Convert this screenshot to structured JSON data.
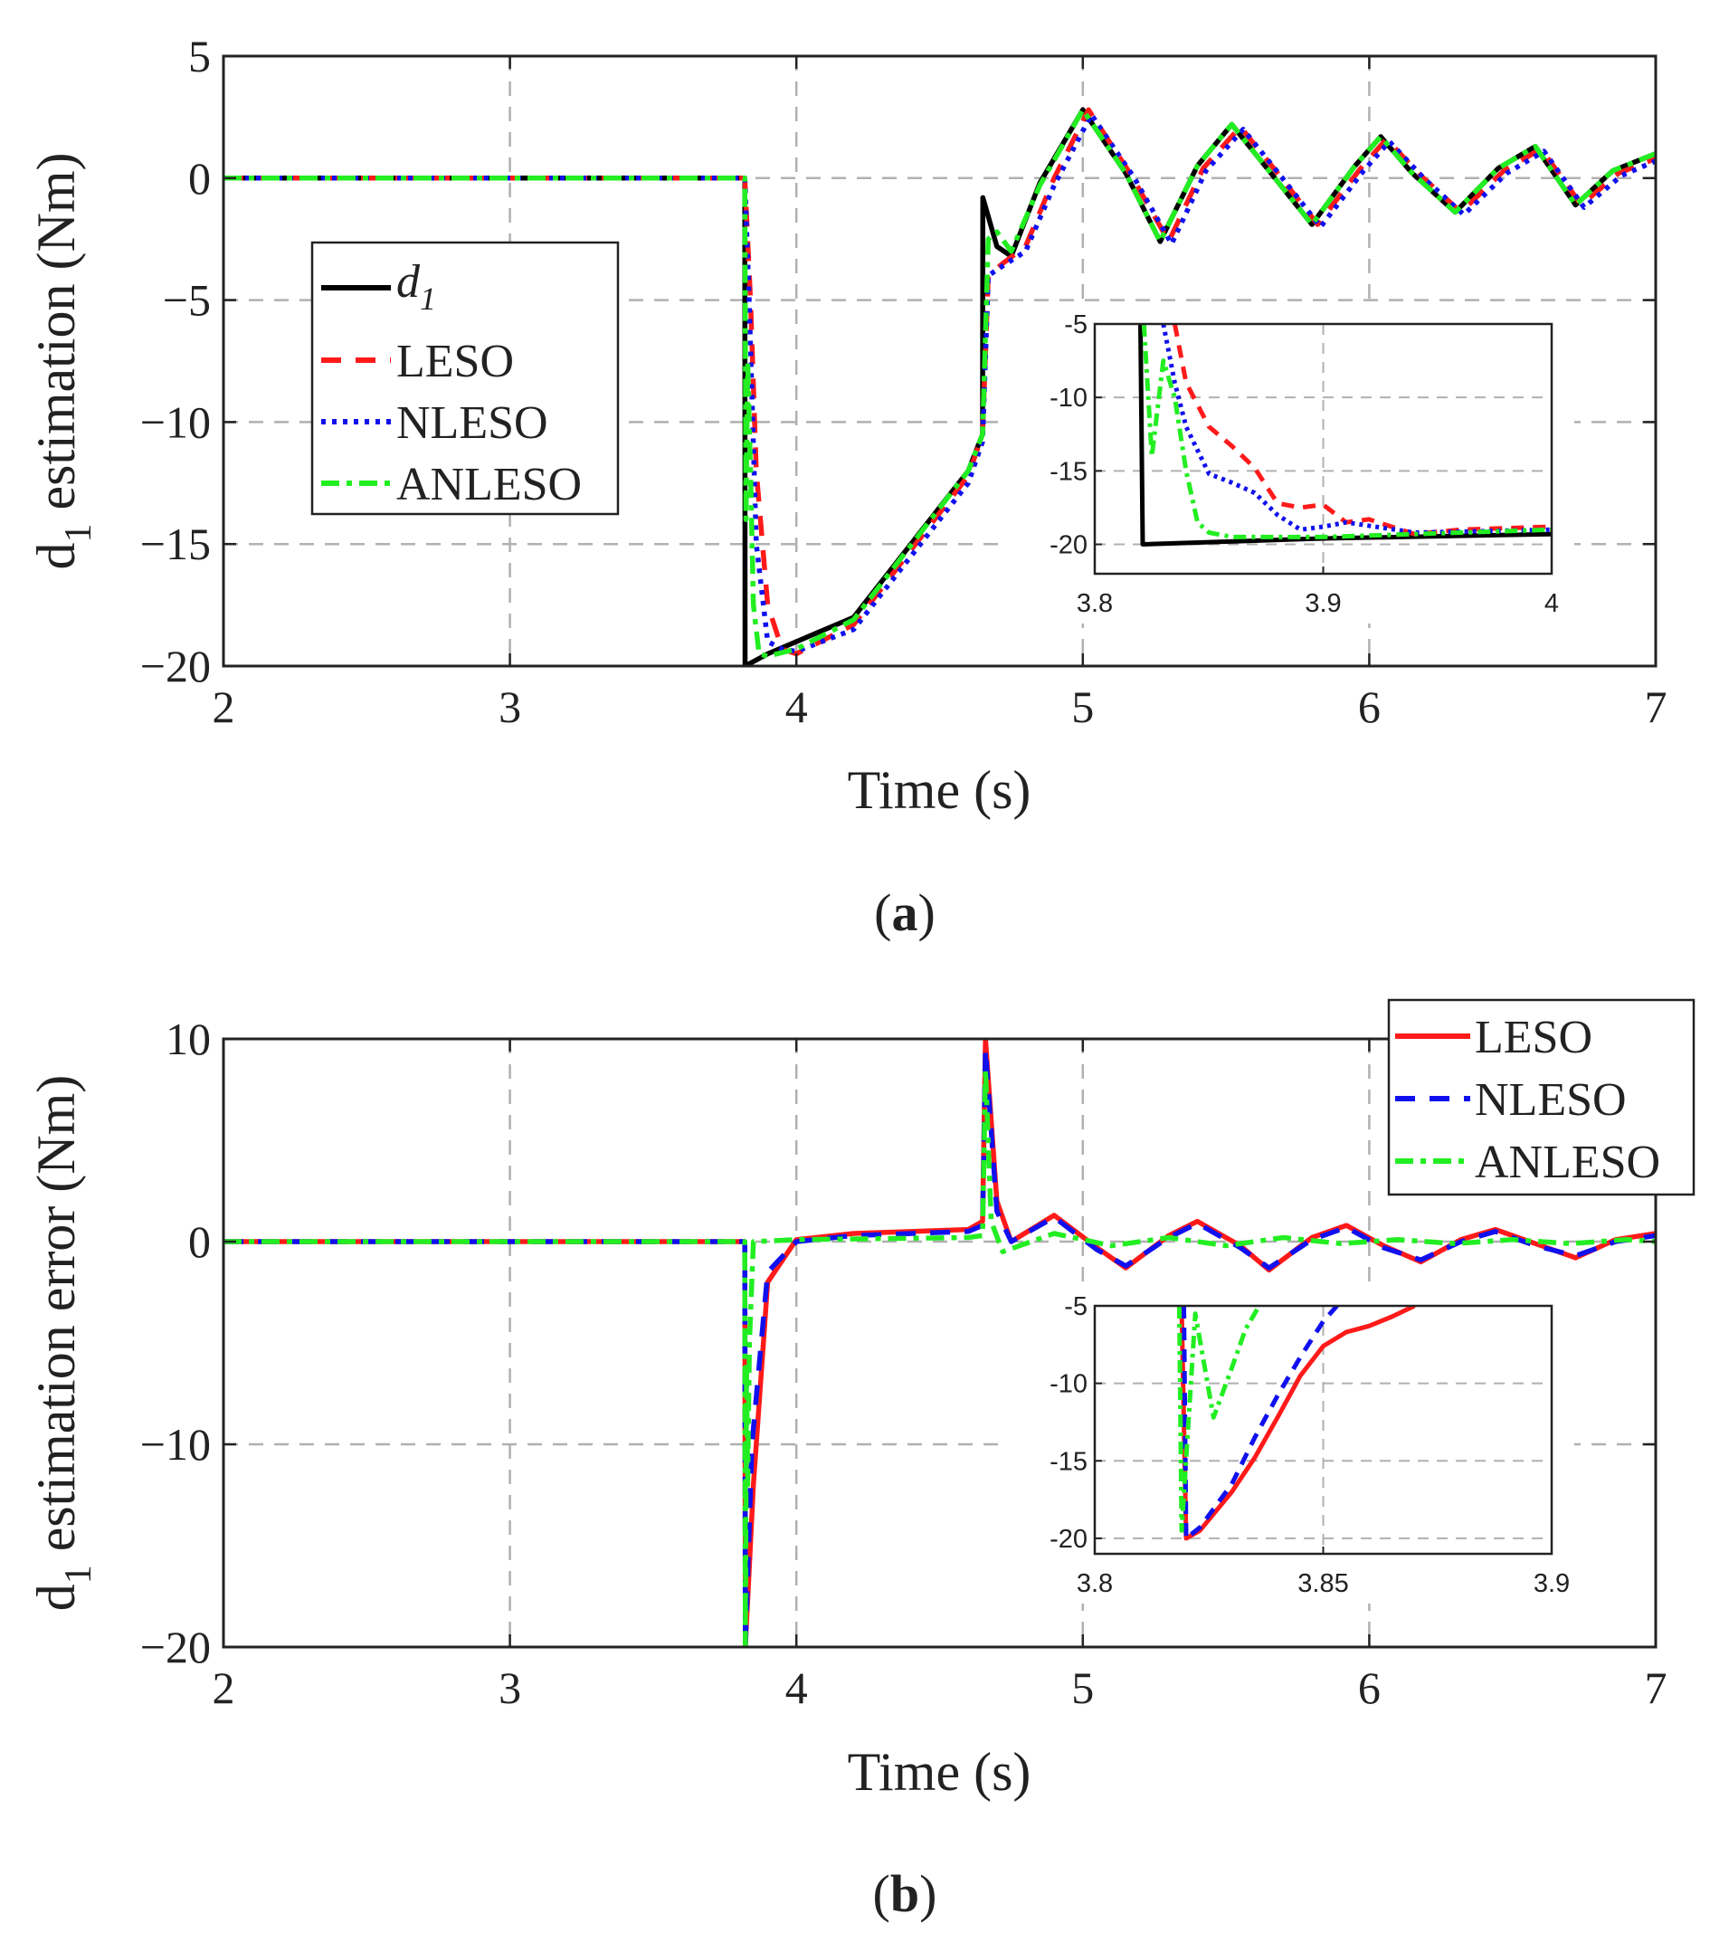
{
  "colors": {
    "d1": "#000000",
    "LESO": "#ff1a1a",
    "NLESO": "#1010ee",
    "NLESO_b": "#1010ee",
    "ANLESO": "#22ee22",
    "grid": "#b0b0b0"
  },
  "chart_data": [
    {
      "id": "a",
      "type": "line",
      "caption_letter": "a",
      "xlabel": "Time (s)",
      "ylabel_main": "d",
      "ylabel_sub": "1",
      "ylabel_rest": " estimation (Nm)",
      "xlim": [
        2,
        7
      ],
      "ylim": [
        -20,
        5
      ],
      "xticks": [
        2,
        3,
        4,
        5,
        6,
        7
      ],
      "yticks": [
        5,
        0,
        -5,
        -10,
        -15,
        -20
      ],
      "xtick_labels": [
        "2",
        "3",
        "4",
        "5",
        "6",
        "7"
      ],
      "ytick_labels": [
        "5",
        "0",
        "−5",
        "−10",
        "−15",
        "−20"
      ],
      "grid": true,
      "legend_position": "left",
      "legend": [
        {
          "key": "d1",
          "label_main": "d",
          "label_sub": "1",
          "style": "solid"
        },
        {
          "key": "LESO",
          "label": "LESO",
          "style": "dashed"
        },
        {
          "key": "NLESO",
          "label": "NLESO",
          "style": "dotted"
        },
        {
          "key": "ANLESO",
          "label": "ANLESO",
          "style": "dashdot"
        }
      ],
      "series": [
        {
          "key": "d1",
          "style": "solid",
          "x": [
            2,
            3.82,
            3.821,
            3.9,
            4.2,
            4.6,
            4.65,
            4.651,
            4.7,
            4.75,
            4.85,
            5,
            5.15,
            5.27,
            5.4,
            5.52,
            5.65,
            5.8,
            5.95,
            6.04,
            6.15,
            6.3,
            6.45,
            6.58,
            6.72,
            6.85,
            7
          ],
          "y": [
            0,
            0,
            -20,
            -19.5,
            -18,
            -12,
            -10.5,
            -0.8,
            -2.8,
            -3.2,
            -0.2,
            2.8,
            0.2,
            -2.6,
            0.5,
            2.2,
            0.3,
            -1.9,
            0.5,
            1.7,
            0.2,
            -1.4,
            0.4,
            1.3,
            -1.1,
            0.3,
            1
          ]
        },
        {
          "key": "LESO",
          "style": "dashed",
          "x": [
            2,
            3.82,
            3.84,
            3.86,
            3.9,
            3.95,
            4.0,
            4.2,
            4.6,
            4.65,
            4.67,
            4.72,
            4.8,
            4.9,
            5.02,
            5.17,
            5.3,
            5.42,
            5.55,
            5.68,
            5.82,
            5.97,
            6.06,
            6.18,
            6.32,
            6.47,
            6.6,
            6.74,
            6.87,
            7
          ],
          "y": [
            0,
            0,
            -5,
            -12,
            -17.5,
            -19.3,
            -19.5,
            -18.3,
            -12.2,
            -10.5,
            -4,
            -3.5,
            -2.8,
            0,
            2.8,
            0.1,
            -2.6,
            0.4,
            2.1,
            0.2,
            -1.9,
            0.4,
            1.6,
            0.1,
            -1.4,
            0.3,
            1.2,
            -1.1,
            0.2,
            0.8
          ]
        },
        {
          "key": "NLESO",
          "style": "dotted",
          "x": [
            2,
            3.82,
            3.835,
            3.86,
            3.9,
            3.95,
            4.0,
            4.2,
            4.6,
            4.65,
            4.67,
            4.72,
            4.8,
            4.9,
            5.03,
            5.18,
            5.31,
            5.43,
            5.56,
            5.69,
            5.83,
            5.98,
            6.07,
            6.19,
            6.33,
            6.48,
            6.61,
            6.75,
            6.88,
            7
          ],
          "y": [
            0,
            0,
            -5,
            -15,
            -19,
            -19.3,
            -19.4,
            -18.5,
            -12.5,
            -10.8,
            -4,
            -3.6,
            -3,
            -0.3,
            2.6,
            0,
            -2.7,
            0.3,
            2,
            0.1,
            -2,
            0.3,
            1.5,
            0,
            -1.5,
            0.2,
            1.1,
            -1.2,
            0.1,
            0.7
          ]
        },
        {
          "key": "ANLESO",
          "style": "dashdot",
          "x": [
            2,
            3.82,
            3.824,
            3.83,
            3.84,
            3.85,
            3.87,
            3.9,
            4.0,
            4.2,
            4.6,
            4.65,
            4.67,
            4.7,
            4.75,
            4.85,
            5,
            5.15,
            5.27,
            5.4,
            5.52,
            5.65,
            5.8,
            5.95,
            6.04,
            6.15,
            6.3,
            6.45,
            6.58,
            6.72,
            6.85,
            7
          ],
          "y": [
            0,
            0,
            -14,
            -7.5,
            -12,
            -17.5,
            -19.5,
            -19.6,
            -19.3,
            -18.1,
            -12,
            -10.5,
            -2.5,
            -2.2,
            -3,
            -0.3,
            2.8,
            0.2,
            -2.6,
            0.5,
            2.2,
            0.3,
            -1.9,
            0.5,
            1.7,
            0.2,
            -1.4,
            0.4,
            1.3,
            -1.1,
            0.3,
            1
          ]
        }
      ],
      "inset": {
        "xlim": [
          3.8,
          4
        ],
        "ylim": [
          -22,
          -5
        ],
        "xticks": [
          3.8,
          3.9,
          4
        ],
        "yticks": [
          -5,
          -10,
          -15,
          -20
        ],
        "xtick_labels": [
          "3.8",
          "3.9",
          "4"
        ],
        "ytick_labels": [
          "-5",
          "-10",
          "-15",
          "-20"
        ],
        "grid": true,
        "series": [
          {
            "key": "d1",
            "style": "solid",
            "x": [
              3.82,
              3.821,
              3.9,
              4.0
            ],
            "y": [
              -5,
              -20,
              -19.6,
              -19.3
            ]
          },
          {
            "key": "LESO",
            "style": "dashed",
            "x": [
              3.835,
              3.84,
              3.85,
              3.86,
              3.87,
              3.88,
              3.89,
              3.9,
              3.91,
              3.92,
              3.94,
              3.96,
              4.0
            ],
            "y": [
              -5,
              -9,
              -12,
              -13.3,
              -14.8,
              -17.2,
              -17.5,
              -17.3,
              -18.5,
              -18.3,
              -19.3,
              -19,
              -18.8
            ]
          },
          {
            "key": "NLESO",
            "style": "dotted",
            "x": [
              3.83,
              3.835,
              3.84,
              3.85,
              3.86,
              3.87,
              3.88,
              3.89,
              3.9,
              3.91,
              3.94,
              4.0
            ],
            "y": [
              -5,
              -9,
              -12,
              -15.2,
              -15.8,
              -16.5,
              -18,
              -19,
              -18.8,
              -18.5,
              -19.2,
              -19
            ]
          },
          {
            "key": "ANLESO",
            "style": "dashdot",
            "x": [
              3.8215,
              3.825,
              3.83,
              3.835,
              3.84,
              3.845,
              3.85,
              3.86,
              3.9,
              4.0
            ],
            "y": [
              -5,
              -14,
              -7.5,
              -10,
              -15,
              -18.5,
              -19.2,
              -19.5,
              -19.5,
              -19
            ]
          }
        ]
      }
    },
    {
      "id": "b",
      "type": "line",
      "caption_letter": "b",
      "xlabel": "Time (s)",
      "ylabel_main": "d",
      "ylabel_sub": "1",
      "ylabel_rest": " estimation error (Nm)",
      "xlim": [
        2,
        7
      ],
      "ylim": [
        -20,
        10
      ],
      "xticks": [
        2,
        3,
        4,
        5,
        6,
        7
      ],
      "yticks": [
        10,
        0,
        -10,
        -20
      ],
      "xtick_labels": [
        "2",
        "3",
        "4",
        "5",
        "6",
        "7"
      ],
      "ytick_labels": [
        "10",
        "0",
        "−10",
        "−20"
      ],
      "grid": true,
      "legend_position": "top-right",
      "legend": [
        {
          "key": "LESO",
          "label": "LESO",
          "style": "solid"
        },
        {
          "key": "NLESO_b",
          "label": "NLESO",
          "style": "dashed"
        },
        {
          "key": "ANLESO",
          "label": "ANLESO",
          "style": "dashdot"
        }
      ],
      "series": [
        {
          "key": "LESO",
          "style": "solid",
          "x": [
            2,
            3.82,
            3.822,
            3.85,
            3.9,
            4.0,
            4.2,
            4.6,
            4.65,
            4.66,
            4.7,
            4.75,
            4.9,
            5.05,
            5.15,
            5.3,
            5.4,
            5.55,
            5.65,
            5.8,
            5.92,
            6.05,
            6.18,
            6.32,
            6.44,
            6.58,
            6.72,
            6.86,
            7
          ],
          "y": [
            0,
            0,
            -20,
            -12,
            -2,
            0.1,
            0.4,
            0.6,
            1,
            10,
            2,
            0,
            1.3,
            -0.3,
            -1.3,
            0.3,
            1,
            -0.2,
            -1.4,
            0.2,
            0.8,
            -0.2,
            -1,
            0.1,
            0.6,
            -0.1,
            -0.8,
            0.1,
            0.4
          ]
        },
        {
          "key": "NLESO_b",
          "style": "dashed",
          "x": [
            2,
            3.82,
            3.822,
            3.845,
            3.9,
            4.0,
            4.2,
            4.6,
            4.65,
            4.66,
            4.7,
            4.75,
            4.9,
            5.05,
            5.15,
            5.3,
            5.4,
            5.55,
            5.65,
            5.8,
            5.92,
            6.05,
            6.18,
            6.32,
            6.44,
            6.58,
            6.72,
            6.86,
            7
          ],
          "y": [
            0,
            0,
            -20,
            -10,
            -1.5,
            0,
            0.3,
            0.5,
            0.8,
            9.5,
            1.5,
            0,
            1.2,
            -0.4,
            -1.2,
            0.2,
            0.9,
            -0.3,
            -1.3,
            0.1,
            0.7,
            -0.3,
            -0.9,
            0,
            0.5,
            -0.2,
            -0.7,
            0,
            0.3
          ]
        },
        {
          "key": "ANLESO",
          "style": "dashdot",
          "x": [
            2,
            3.82,
            3.822,
            3.826,
            3.83,
            3.836,
            3.85,
            4.0,
            4.6,
            4.65,
            4.66,
            4.68,
            4.72,
            4.9,
            5.1,
            5.3,
            5.5,
            5.7,
            5.9,
            6.1,
            6.3,
            6.5,
            6.7,
            6.9,
            7
          ],
          "y": [
            0,
            0,
            -20,
            -6,
            -12,
            -5,
            0,
            0.1,
            0.2,
            0.3,
            8.5,
            1,
            -0.5,
            0.4,
            -0.2,
            0.2,
            -0.2,
            0.2,
            -0.1,
            0.1,
            -0.1,
            0.1,
            -0.1,
            0.1,
            0
          ]
        }
      ],
      "inset": {
        "xlim": [
          3.8,
          3.9
        ],
        "ylim": [
          -21,
          -5
        ],
        "xticks": [
          3.8,
          3.85,
          3.9
        ],
        "yticks": [
          -5,
          -10,
          -15,
          -20
        ],
        "xtick_labels": [
          "3.8",
          "3.85",
          "3.9"
        ],
        "ytick_labels": [
          "-5",
          "-10",
          "-15",
          "-20"
        ],
        "grid": true,
        "series": [
          {
            "key": "LESO",
            "style": "solid",
            "x": [
              3.819,
              3.82,
              3.823,
              3.83,
              3.835,
              3.84,
              3.845,
              3.85,
              3.855,
              3.86,
              3.865,
              3.87
            ],
            "y": [
              -5,
              -20,
              -19.5,
              -17,
              -14.8,
              -12.2,
              -9.5,
              -7.6,
              -6.7,
              -6.3,
              -5.7,
              -5
            ]
          },
          {
            "key": "NLESO_b",
            "style": "dashed",
            "x": [
              3.8195,
              3.82,
              3.823,
              3.83,
              3.835,
              3.84,
              3.845,
              3.85,
              3.853
            ],
            "y": [
              -5,
              -20,
              -19.3,
              -16.5,
              -13.5,
              -10.8,
              -8.3,
              -6,
              -5
            ]
          },
          {
            "key": "ANLESO",
            "style": "dashdot",
            "x": [
              3.8185,
              3.819,
              3.822,
              3.826,
              3.83,
              3.833,
              3.836
            ],
            "y": [
              -5,
              -19.5,
              -5.5,
              -12.2,
              -9,
              -6.5,
              -5
            ]
          }
        ]
      }
    }
  ]
}
